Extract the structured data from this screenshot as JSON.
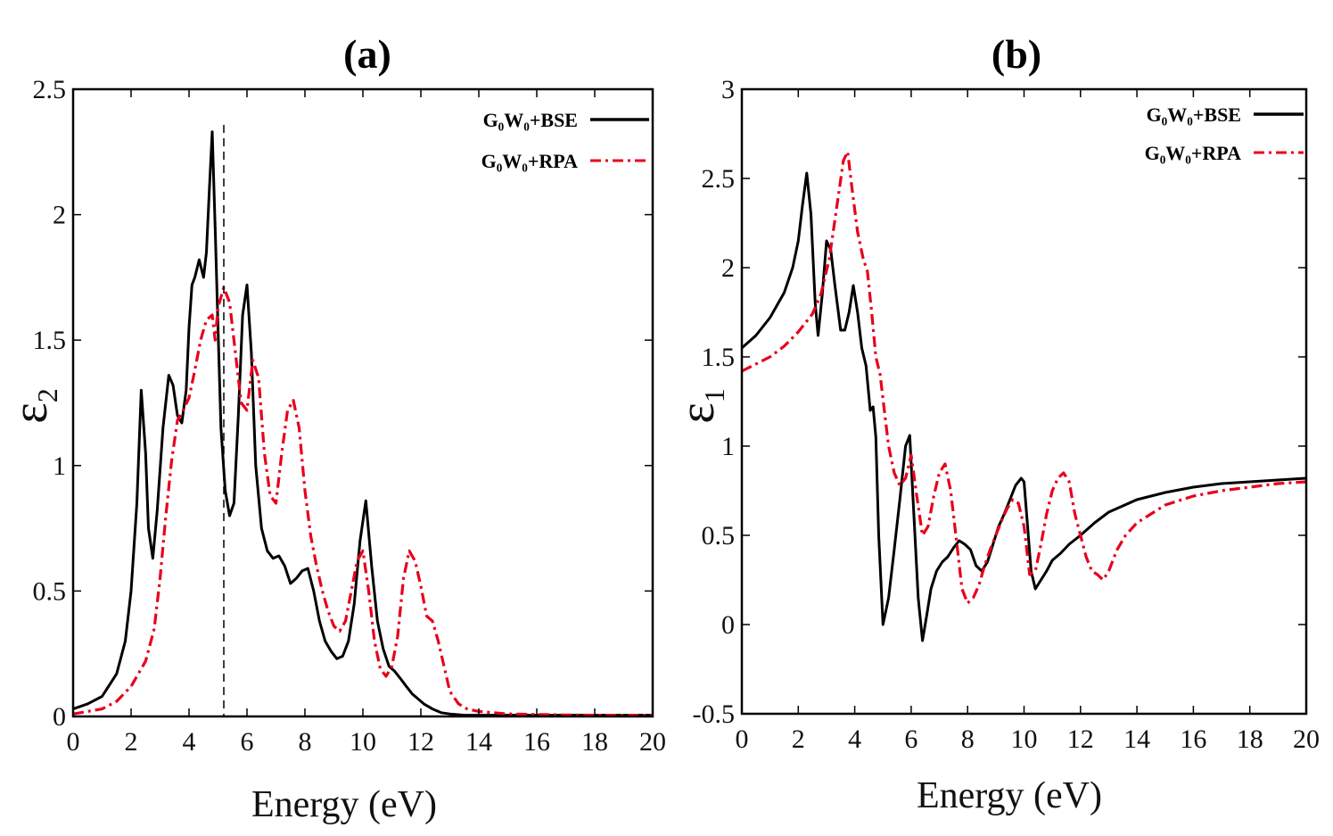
{
  "chart_data": [
    {
      "type": "line",
      "panel_label": "(a)",
      "xlabel": "Energy (eV)",
      "ylabel": "ε",
      "ylabel_sub": "2",
      "xlim": [
        0,
        20
      ],
      "ylim": [
        0,
        2.5
      ],
      "xticks": [
        0,
        2,
        4,
        6,
        8,
        10,
        12,
        14,
        16,
        18,
        20
      ],
      "xtick_labels": [
        "0",
        "2",
        "4",
        "6",
        "8",
        "10",
        "12",
        "14",
        "16",
        "18",
        "20"
      ],
      "yticks": [
        0,
        0.5,
        1,
        1.5,
        2,
        2.5
      ],
      "ytick_labels": [
        "0",
        "0.5",
        "1",
        "1.5",
        "2",
        "2.5"
      ],
      "legend": "top-right",
      "vline_x": 5.2,
      "series": [
        {
          "name": "G₀W₀+BSE",
          "color": "#000000",
          "style": "solid",
          "x": [
            0,
            0.5,
            1,
            1.5,
            1.8,
            2.0,
            2.2,
            2.35,
            2.5,
            2.6,
            2.75,
            2.9,
            3.1,
            3.3,
            3.45,
            3.6,
            3.75,
            3.9,
            4.0,
            4.1,
            4.2,
            4.35,
            4.5,
            4.6,
            4.7,
            4.8,
            4.9,
            5.0,
            5.1,
            5.25,
            5.4,
            5.55,
            5.7,
            5.85,
            6.0,
            6.15,
            6.3,
            6.5,
            6.7,
            6.9,
            7.1,
            7.3,
            7.5,
            7.7,
            7.9,
            8.1,
            8.3,
            8.5,
            8.7,
            8.9,
            9.1,
            9.3,
            9.5,
            9.7,
            9.9,
            10.1,
            10.3,
            10.5,
            10.7,
            10.9,
            11.1,
            11.3,
            11.5,
            11.7,
            11.9,
            12.1,
            12.4,
            12.7,
            13.0,
            13.5,
            14,
            15,
            16,
            17,
            18,
            19,
            20
          ],
          "y": [
            0.03,
            0.05,
            0.08,
            0.17,
            0.3,
            0.5,
            0.85,
            1.3,
            1.05,
            0.75,
            0.63,
            0.82,
            1.15,
            1.36,
            1.32,
            1.2,
            1.17,
            1.3,
            1.55,
            1.72,
            1.75,
            1.82,
            1.75,
            1.85,
            2.1,
            2.33,
            1.95,
            1.55,
            1.15,
            0.9,
            0.8,
            0.85,
            1.2,
            1.6,
            1.72,
            1.45,
            1.0,
            0.75,
            0.66,
            0.63,
            0.64,
            0.6,
            0.53,
            0.55,
            0.58,
            0.59,
            0.5,
            0.38,
            0.3,
            0.26,
            0.23,
            0.24,
            0.3,
            0.45,
            0.7,
            0.86,
            0.6,
            0.38,
            0.27,
            0.2,
            0.18,
            0.15,
            0.12,
            0.09,
            0.07,
            0.05,
            0.03,
            0.015,
            0.01,
            0.005,
            0.005,
            0.005,
            0.005,
            0.005,
            0.005,
            0.005,
            0.005
          ]
        },
        {
          "name": "G₀W₀+RPA",
          "color": "#e8001c",
          "style": "dashdot",
          "x": [
            0,
            0.5,
            1,
            1.5,
            2.0,
            2.5,
            2.8,
            3.0,
            3.2,
            3.4,
            3.6,
            3.8,
            4.0,
            4.2,
            4.4,
            4.6,
            4.8,
            4.9,
            5.0,
            5.2,
            5.4,
            5.6,
            5.8,
            6.0,
            6.2,
            6.4,
            6.6,
            6.8,
            7.0,
            7.2,
            7.4,
            7.6,
            7.8,
            8.0,
            8.2,
            8.4,
            8.6,
            8.8,
            9.0,
            9.2,
            9.4,
            9.6,
            9.8,
            10.0,
            10.2,
            10.4,
            10.6,
            10.8,
            11.0,
            11.2,
            11.4,
            11.6,
            11.8,
            12.0,
            12.2,
            12.4,
            12.6,
            12.8,
            13.0,
            13.3,
            13.6,
            14,
            15,
            16,
            17,
            18,
            19,
            20
          ],
          "y": [
            0.01,
            0.02,
            0.03,
            0.06,
            0.12,
            0.22,
            0.35,
            0.55,
            0.8,
            1.02,
            1.18,
            1.22,
            1.27,
            1.38,
            1.5,
            1.58,
            1.6,
            1.5,
            1.63,
            1.71,
            1.65,
            1.45,
            1.25,
            1.22,
            1.42,
            1.35,
            1.05,
            0.88,
            0.85,
            1.05,
            1.22,
            1.26,
            1.15,
            0.9,
            0.72,
            0.6,
            0.5,
            0.42,
            0.36,
            0.34,
            0.38,
            0.5,
            0.62,
            0.66,
            0.5,
            0.3,
            0.19,
            0.16,
            0.2,
            0.32,
            0.55,
            0.66,
            0.62,
            0.52,
            0.4,
            0.38,
            0.3,
            0.2,
            0.1,
            0.05,
            0.03,
            0.02,
            0.01,
            0.008,
            0.006,
            0.005,
            0.005,
            0.005
          ]
        }
      ]
    },
    {
      "type": "line",
      "panel_label": "(b)",
      "xlabel": "Energy (eV)",
      "ylabel": "ε",
      "ylabel_sub": "1",
      "xlim": [
        0,
        20
      ],
      "ylim": [
        -0.5,
        3
      ],
      "xticks": [
        0,
        2,
        4,
        6,
        8,
        10,
        12,
        14,
        16,
        18,
        20
      ],
      "xtick_labels": [
        "0",
        "2",
        "4",
        "6",
        "8",
        "10",
        "12",
        "14",
        "16",
        "18",
        "20"
      ],
      "yticks": [
        -0.5,
        0,
        0.5,
        1,
        1.5,
        2,
        2.5,
        3
      ],
      "ytick_labels": [
        "-0.5",
        "0",
        "0.5",
        "1",
        "1.5",
        "2",
        "2.5",
        "3"
      ],
      "legend": "top-right",
      "series": [
        {
          "name": "G₀W₀+BSE",
          "color": "#000000",
          "style": "solid",
          "x": [
            0,
            0.5,
            1.0,
            1.5,
            1.8,
            2.0,
            2.15,
            2.3,
            2.45,
            2.6,
            2.7,
            2.85,
            3.0,
            3.15,
            3.3,
            3.5,
            3.65,
            3.8,
            3.95,
            4.1,
            4.25,
            4.4,
            4.55,
            4.65,
            4.75,
            4.85,
            5.0,
            5.2,
            5.4,
            5.6,
            5.8,
            5.95,
            6.1,
            6.25,
            6.4,
            6.55,
            6.7,
            6.9,
            7.1,
            7.3,
            7.5,
            7.7,
            7.9,
            8.1,
            8.3,
            8.5,
            8.7,
            8.9,
            9.1,
            9.3,
            9.5,
            9.7,
            9.9,
            10.0,
            10.1,
            10.25,
            10.4,
            10.6,
            10.8,
            11.0,
            11.3,
            11.6,
            12.0,
            12.5,
            13,
            14,
            15,
            16,
            17,
            18,
            19,
            20
          ],
          "y": [
            1.55,
            1.62,
            1.72,
            1.86,
            2.0,
            2.15,
            2.35,
            2.53,
            2.3,
            1.8,
            1.62,
            1.85,
            2.15,
            2.1,
            1.9,
            1.65,
            1.65,
            1.75,
            1.9,
            1.75,
            1.55,
            1.45,
            1.2,
            1.22,
            1.05,
            0.5,
            0.0,
            0.15,
            0.42,
            0.7,
            1.0,
            1.06,
            0.6,
            0.15,
            -0.09,
            0.05,
            0.2,
            0.3,
            0.35,
            0.38,
            0.43,
            0.47,
            0.45,
            0.42,
            0.33,
            0.3,
            0.35,
            0.45,
            0.55,
            0.62,
            0.7,
            0.78,
            0.82,
            0.8,
            0.6,
            0.3,
            0.2,
            0.25,
            0.3,
            0.36,
            0.4,
            0.45,
            0.5,
            0.57,
            0.63,
            0.7,
            0.74,
            0.77,
            0.79,
            0.8,
            0.81,
            0.82
          ]
        },
        {
          "name": "G₀W₀+RPA",
          "color": "#e8001c",
          "style": "dashdot",
          "x": [
            0,
            0.5,
            1.0,
            1.5,
            2.0,
            2.5,
            2.8,
            3.1,
            3.4,
            3.6,
            3.75,
            3.9,
            4.1,
            4.3,
            4.45,
            4.6,
            4.75,
            4.9,
            5.05,
            5.2,
            5.4,
            5.6,
            5.8,
            6.0,
            6.2,
            6.4,
            6.6,
            6.8,
            7.0,
            7.2,
            7.4,
            7.6,
            7.8,
            8.0,
            8.2,
            8.4,
            8.6,
            8.8,
            9.0,
            9.2,
            9.4,
            9.6,
            9.8,
            10.0,
            10.2,
            10.4,
            10.6,
            10.8,
            11.0,
            11.2,
            11.4,
            11.6,
            11.8,
            12.0,
            12.2,
            12.4,
            12.6,
            12.8,
            13.0,
            13.3,
            13.6,
            14,
            15,
            16,
            17,
            18,
            19,
            20
          ],
          "y": [
            1.42,
            1.46,
            1.5,
            1.56,
            1.64,
            1.74,
            1.85,
            2.05,
            2.38,
            2.6,
            2.65,
            2.45,
            2.2,
            2.05,
            1.98,
            1.75,
            1.5,
            1.4,
            1.2,
            1.0,
            0.85,
            0.78,
            0.82,
            0.95,
            0.72,
            0.5,
            0.55,
            0.72,
            0.85,
            0.9,
            0.75,
            0.48,
            0.2,
            0.12,
            0.15,
            0.22,
            0.33,
            0.42,
            0.5,
            0.58,
            0.65,
            0.7,
            0.68,
            0.55,
            0.28,
            0.3,
            0.45,
            0.62,
            0.75,
            0.82,
            0.85,
            0.8,
            0.62,
            0.5,
            0.38,
            0.3,
            0.28,
            0.25,
            0.3,
            0.42,
            0.5,
            0.57,
            0.67,
            0.72,
            0.75,
            0.77,
            0.79,
            0.8
          ]
        }
      ]
    }
  ]
}
